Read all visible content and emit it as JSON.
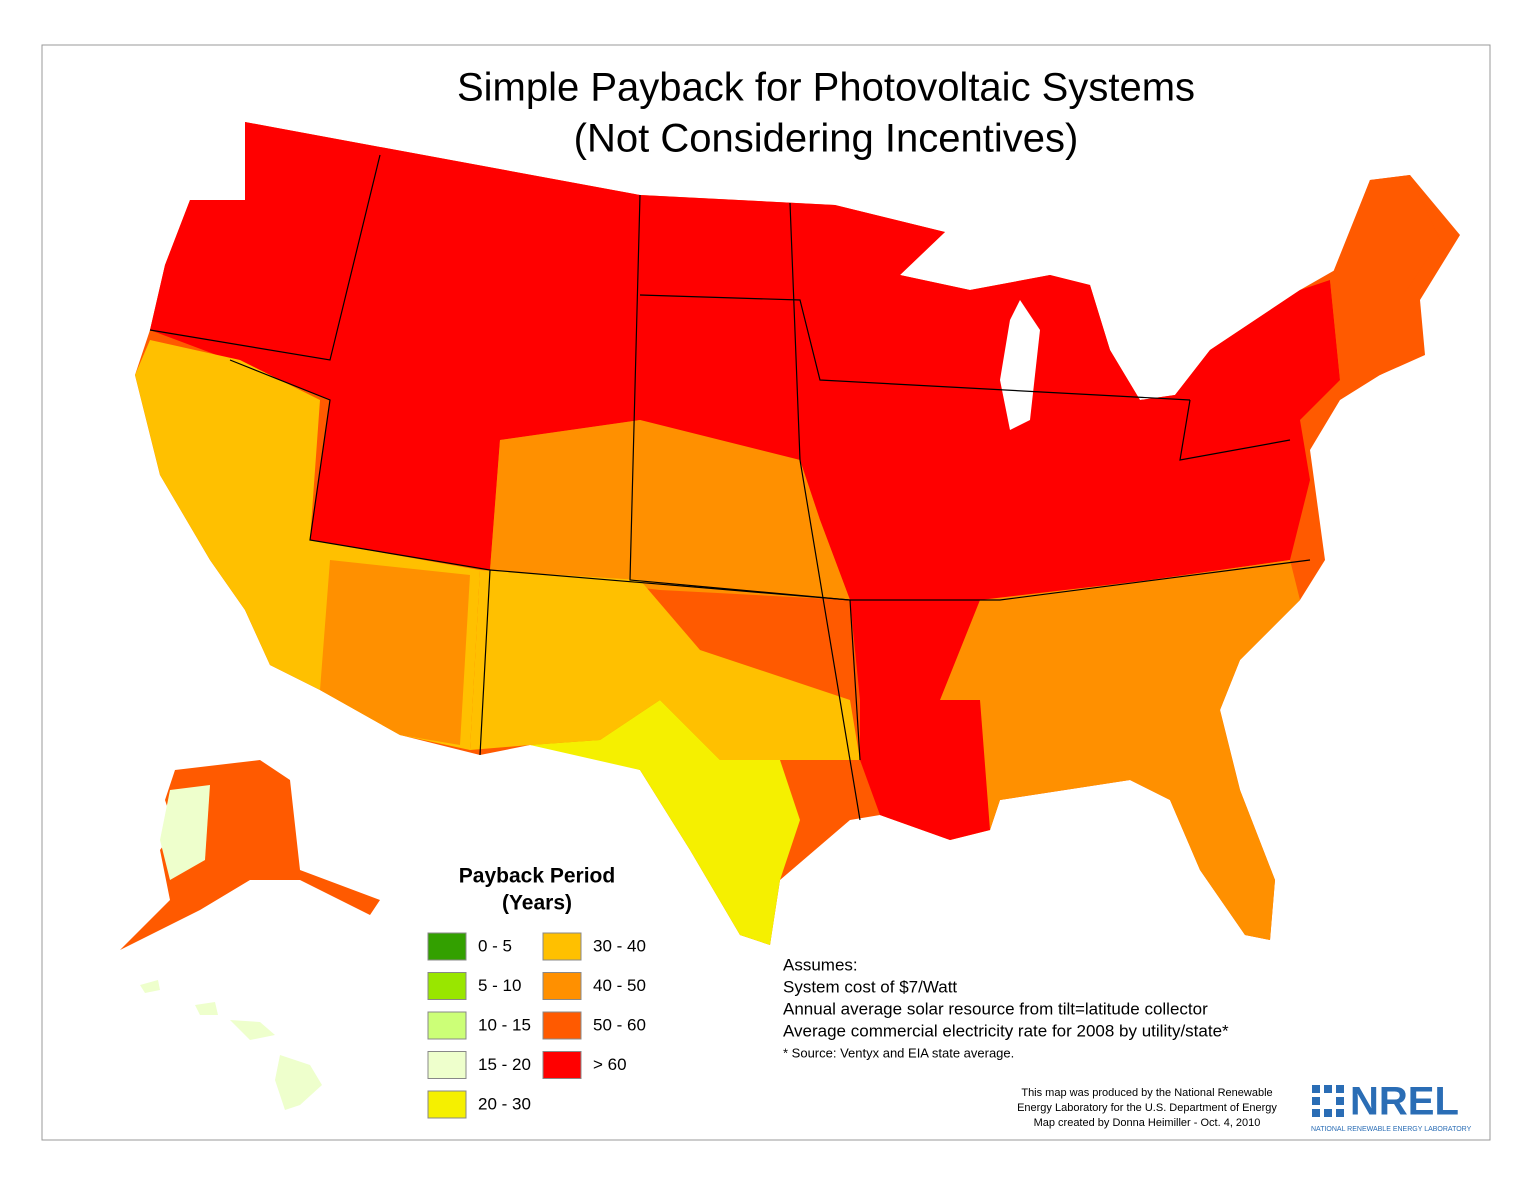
{
  "title": [
    "Simple Payback for Photovoltaic Systems",
    "(Not Considering Incentives)"
  ],
  "legend": {
    "title": [
      "Payback Period",
      "(Years)"
    ],
    "items": [
      {
        "label": "0 - 5",
        "color": "#33a000"
      },
      {
        "label": "5 - 10",
        "color": "#99e600"
      },
      {
        "label": "10 - 15",
        "color": "#ccff77"
      },
      {
        "label": "15 - 20",
        "color": "#eeffcc"
      },
      {
        "label": "20 - 30",
        "color": "#f5f000"
      },
      {
        "label": "30 - 40",
        "color": "#ffc000"
      },
      {
        "label": "40 - 50",
        "color": "#ff9000"
      },
      {
        "label": "50 - 60",
        "color": "#ff5a00"
      },
      {
        "label": "> 60",
        "color": "#ff0000"
      }
    ]
  },
  "notes": {
    "heading": "Assumes:",
    "lines": [
      "System cost of $7/Watt",
      "Annual average solar resource from tilt=latitude collector",
      "Average commercial electricity rate for 2008 by utility/state*"
    ],
    "footnote": "* Source: Ventyx and EIA state average."
  },
  "credit": [
    "This map was produced by the National Renewable",
    "Energy Laboratory for the U.S. Department of Energy",
    "Map created by Donna Heimiller - Oct. 4, 2010"
  ],
  "logo": {
    "name": "NREL",
    "tagline": "NATIONAL RENEWABLE ENERGY LABORATORY"
  }
}
